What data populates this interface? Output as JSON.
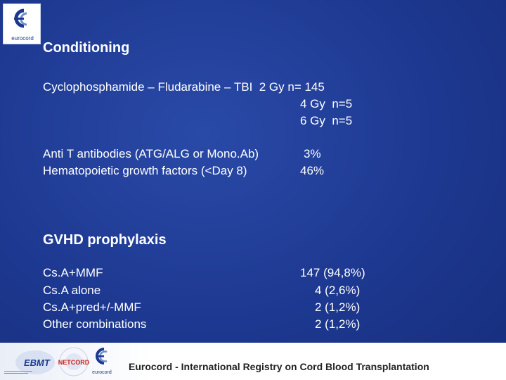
{
  "logo": {
    "name": "eurocord"
  },
  "conditioning": {
    "heading": "Conditioning",
    "line1": "Cyclophosphamide – Fludarabine – TBI  2 Gy n= 145",
    "line2": "4 Gy  n=5",
    "line3": "6 Gy  n=5",
    "atg_label": "Anti T antibodies (ATG/ALG or Mono.Ab)",
    "atg_value": "3%",
    "hgf_label": "Hematopoietic growth factors (<Day 8)",
    "hgf_value": "46%"
  },
  "gvhd": {
    "heading": "GVHD prophylaxis",
    "rows": [
      {
        "label": "Cs.A+MMF",
        "value": "147 (94,8%)"
      },
      {
        "label": "Cs.A alone",
        "value": "4 (2,6%)"
      },
      {
        "label": "Cs.A+pred+/-MMF",
        "value": "2 (1,2%)"
      },
      {
        "label": "Other combinations",
        "value": "2 (1,2%)"
      }
    ]
  },
  "footer": {
    "text": "Eurocord - International Registry on Cord Blood Transplantation",
    "logos": [
      "EBMT",
      "NETCORD",
      "eurocord"
    ]
  },
  "colors": {
    "background": "#1f3a93",
    "text": "#ffffff",
    "footer": "#ffffff"
  }
}
